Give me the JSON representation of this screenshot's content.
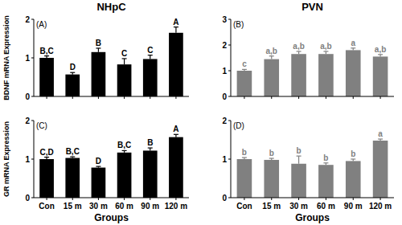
{
  "chart_data": [
    {
      "type": "bar",
      "title": "NHpC",
      "panel_label": "(A)",
      "y_label": "BDNF mRNA Expression",
      "categories": [
        "Con",
        "15 m",
        "30 m",
        "60 m",
        "90 m",
        "120 m"
      ],
      "values": [
        1.0,
        0.57,
        1.15,
        0.83,
        0.97,
        1.65
      ],
      "errors": [
        0.05,
        0.05,
        0.1,
        0.15,
        0.1,
        0.15
      ],
      "letters": [
        "B,C",
        "D",
        "B",
        "C",
        "C",
        "A"
      ],
      "color": "#000000",
      "ylim": [
        0,
        2
      ],
      "yticks": [
        0,
        1,
        2
      ],
      "tick_labels": "y"
    },
    {
      "type": "bar",
      "title": "PVN",
      "panel_label": "(B)",
      "categories": [
        "Con",
        "15 m",
        "30 m",
        "60 m",
        "90 m",
        "120 m"
      ],
      "values": [
        1.0,
        1.45,
        1.65,
        1.65,
        1.8,
        1.55
      ],
      "errors": [
        0.05,
        0.12,
        0.1,
        0.1,
        0.08,
        0.08
      ],
      "letters": [
        "c",
        "a,b",
        "a,b",
        "a,b",
        "a",
        "a,b"
      ],
      "color": "#808080",
      "ylim": [
        0,
        3
      ],
      "yticks": [
        0,
        1,
        2,
        3
      ],
      "tick_labels": "y"
    },
    {
      "type": "bar",
      "panel_label": "(C)",
      "y_label": "GR mRNA Expression",
      "x_label": "Groups",
      "categories": [
        "Con",
        "15 m",
        "30 m",
        "60 m",
        "90 m",
        "120 m"
      ],
      "values": [
        1.0,
        1.03,
        0.78,
        1.17,
        1.22,
        1.57
      ],
      "errors": [
        0.05,
        0.03,
        0.03,
        0.05,
        0.07,
        0.07
      ],
      "letters": [
        "C,D",
        "B,C",
        "D",
        "B,C",
        "B",
        "A"
      ],
      "color": "#000000",
      "ylim": [
        0,
        2
      ],
      "yticks": [
        0,
        1,
        2
      ]
    },
    {
      "type": "bar",
      "panel_label": "(D)",
      "x_label": "Groups",
      "categories": [
        "Con",
        "15 m",
        "30 m",
        "60 m",
        "90 m",
        "120 m"
      ],
      "values": [
        1.0,
        0.98,
        0.88,
        0.85,
        0.95,
        1.48
      ],
      "errors": [
        0.04,
        0.04,
        0.2,
        0.05,
        0.05,
        0.04
      ],
      "letters": [
        "b",
        "b",
        "b",
        "b",
        "b",
        "a"
      ],
      "color": "#808080",
      "ylim": [
        0,
        2
      ],
      "yticks": [
        0,
        1,
        2
      ]
    }
  ]
}
